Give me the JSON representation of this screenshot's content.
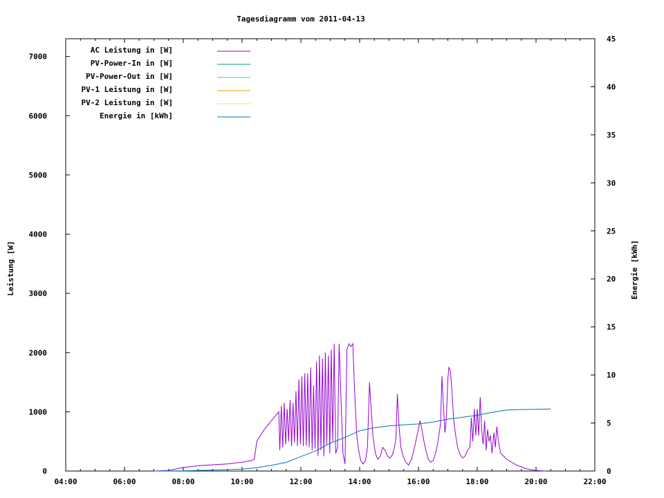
{
  "chart_data": {
    "type": "line",
    "title": "Tagesdiagramm vom 2011-04-13",
    "xlabel": "",
    "ylabel": "Leistung [W]",
    "y2label": "Energie [kWh]",
    "x_ticks": [
      "04:00",
      "06:00",
      "08:00",
      "10:00",
      "12:00",
      "14:00",
      "16:00",
      "18:00",
      "20:00",
      "22:00"
    ],
    "y_ticks": [
      "0",
      "1000",
      "2000",
      "3000",
      "4000",
      "5000",
      "6000",
      "7000"
    ],
    "y2_ticks": [
      "0",
      "5",
      "10",
      "15",
      "20",
      "25",
      "30",
      "35",
      "40",
      "45"
    ],
    "xlim": [
      "04:00",
      "22:00"
    ],
    "ylim": [
      0,
      7300
    ],
    "y2lim": [
      0,
      45
    ],
    "grid": false,
    "legend_position": "top-left",
    "legend": [
      {
        "label": "AC Leistung in [W]",
        "color": "#9400d3"
      },
      {
        "label": "PV-Power-In in [W]",
        "color": "#009e73"
      },
      {
        "label": "PV-Power-Out in [W]",
        "color": "#56b4e9"
      },
      {
        "label": "PV-1 Leistung in [W]",
        "color": "#e69f00"
      },
      {
        "label": "PV-2 Leistung in [W]",
        "color": "#f0e442"
      },
      {
        "label": "Energie in [kWh]",
        "color": "#0072b2"
      }
    ],
    "series": [
      {
        "name": "AC Leistung in [W]",
        "axis": "y1",
        "color": "#9400d3",
        "points": [
          [
            "07:00",
            0
          ],
          [
            "07:30",
            10
          ],
          [
            "08:00",
            60
          ],
          [
            "08:20",
            80
          ],
          [
            "08:40",
            95
          ],
          [
            "09:00",
            105
          ],
          [
            "09:30",
            120
          ],
          [
            "10:00",
            150
          ],
          [
            "10:20",
            180
          ],
          [
            "10:25",
            200
          ],
          [
            "10:30",
            500
          ],
          [
            "10:45",
            700
          ],
          [
            "11:00",
            850
          ],
          [
            "11:10",
            950
          ],
          [
            "11:15",
            1000
          ],
          [
            "11:17",
            350
          ],
          [
            "11:20",
            1100
          ],
          [
            "11:23",
            400
          ],
          [
            "11:26",
            1150
          ],
          [
            "11:29",
            450
          ],
          [
            "11:32",
            1050
          ],
          [
            "11:35",
            500
          ],
          [
            "11:38",
            1200
          ],
          [
            "11:41",
            420
          ],
          [
            "11:44",
            1150
          ],
          [
            "11:47",
            480
          ],
          [
            "11:50",
            1350
          ],
          [
            "11:53",
            420
          ],
          [
            "11:56",
            1550
          ],
          [
            "11:59",
            450
          ],
          [
            "12:02",
            1600
          ],
          [
            "12:05",
            420
          ],
          [
            "12:08",
            1650
          ],
          [
            "12:11",
            430
          ],
          [
            "12:14",
            1650
          ],
          [
            "12:17",
            400
          ],
          [
            "12:20",
            1750
          ],
          [
            "12:23",
            350
          ],
          [
            "12:26",
            1450
          ],
          [
            "12:29",
            380
          ],
          [
            "12:32",
            1850
          ],
          [
            "12:35",
            250
          ],
          [
            "12:38",
            1950
          ],
          [
            "12:41",
            350
          ],
          [
            "12:44",
            1900
          ],
          [
            "12:47",
            250
          ],
          [
            "12:50",
            2000
          ],
          [
            "12:53",
            450
          ],
          [
            "12:56",
            1950
          ],
          [
            "12:59",
            300
          ],
          [
            "13:02",
            2050
          ],
          [
            "13:05",
            500
          ],
          [
            "13:08",
            2150
          ],
          [
            "13:11",
            300
          ],
          [
            "13:15",
            400
          ],
          [
            "13:18",
            2150
          ],
          [
            "13:22",
            1200
          ],
          [
            "13:26",
            300
          ],
          [
            "13:30",
            120
          ],
          [
            "13:34",
            2050
          ],
          [
            "13:38",
            2150
          ],
          [
            "13:42",
            2100
          ],
          [
            "13:46",
            2150
          ],
          [
            "13:50",
            1300
          ],
          [
            "13:54",
            600
          ],
          [
            "13:58",
            350
          ],
          [
            "14:02",
            180
          ],
          [
            "14:07",
            120
          ],
          [
            "14:12",
            180
          ],
          [
            "14:16",
            400
          ],
          [
            "14:20",
            1500
          ],
          [
            "14:23",
            1100
          ],
          [
            "14:27",
            600
          ],
          [
            "14:32",
            300
          ],
          [
            "14:37",
            200
          ],
          [
            "14:42",
            250
          ],
          [
            "14:47",
            400
          ],
          [
            "14:52",
            350
          ],
          [
            "14:57",
            250
          ],
          [
            "15:02",
            220
          ],
          [
            "15:07",
            280
          ],
          [
            "15:11",
            400
          ],
          [
            "15:14",
            550
          ],
          [
            "15:17",
            1300
          ],
          [
            "15:20",
            800
          ],
          [
            "15:24",
            400
          ],
          [
            "15:29",
            250
          ],
          [
            "15:34",
            150
          ],
          [
            "15:40",
            100
          ],
          [
            "15:46",
            200
          ],
          [
            "15:52",
            400
          ],
          [
            "15:57",
            600
          ],
          [
            "16:00",
            700
          ],
          [
            "16:03",
            850
          ],
          [
            "16:06",
            750
          ],
          [
            "16:10",
            550
          ],
          [
            "16:15",
            350
          ],
          [
            "16:20",
            200
          ],
          [
            "16:25",
            150
          ],
          [
            "16:30",
            180
          ],
          [
            "16:35",
            300
          ],
          [
            "16:40",
            500
          ],
          [
            "16:45",
            800
          ],
          [
            "16:48",
            1600
          ],
          [
            "16:51",
            1100
          ],
          [
            "16:54",
            650
          ],
          [
            "16:57",
            900
          ],
          [
            "17:00",
            1550
          ],
          [
            "17:02",
            1750
          ],
          [
            "17:05",
            1700
          ],
          [
            "17:08",
            1400
          ],
          [
            "17:12",
            850
          ],
          [
            "17:16",
            600
          ],
          [
            "17:20",
            400
          ],
          [
            "17:25",
            280
          ],
          [
            "17:30",
            220
          ],
          [
            "17:35",
            250
          ],
          [
            "17:40",
            350
          ],
          [
            "17:45",
            400
          ],
          [
            "17:48",
            900
          ],
          [
            "17:51",
            500
          ],
          [
            "17:54",
            1050
          ],
          [
            "17:57",
            600
          ],
          [
            "18:00",
            1050
          ],
          [
            "18:03",
            600
          ],
          [
            "18:06",
            1250
          ],
          [
            "18:09",
            700
          ],
          [
            "18:12",
            450
          ],
          [
            "18:15",
            850
          ],
          [
            "18:18",
            350
          ],
          [
            "18:21",
            700
          ],
          [
            "18:24",
            500
          ],
          [
            "18:27",
            600
          ],
          [
            "18:30",
            300
          ],
          [
            "18:34",
            650
          ],
          [
            "18:37",
            400
          ],
          [
            "18:40",
            750
          ],
          [
            "18:44",
            450
          ],
          [
            "18:48",
            300
          ],
          [
            "18:54",
            250
          ],
          [
            "19:00",
            200
          ],
          [
            "19:10",
            150
          ],
          [
            "19:20",
            100
          ],
          [
            "19:30",
            70
          ],
          [
            "19:40",
            40
          ],
          [
            "19:50",
            20
          ],
          [
            "20:00",
            10
          ],
          [
            "20:10",
            5
          ],
          [
            "20:20",
            0
          ]
        ]
      },
      {
        "name": "Energie in [kWh]",
        "axis": "y2",
        "color": "#0072b2",
        "points": [
          [
            "07:00",
            0
          ],
          [
            "08:00",
            0.02
          ],
          [
            "09:00",
            0.1
          ],
          [
            "10:00",
            0.2
          ],
          [
            "10:30",
            0.35
          ],
          [
            "11:00",
            0.6
          ],
          [
            "11:30",
            0.9
          ],
          [
            "12:00",
            1.5
          ],
          [
            "12:30",
            2.1
          ],
          [
            "13:00",
            2.9
          ],
          [
            "13:30",
            3.5
          ],
          [
            "14:00",
            4.2
          ],
          [
            "14:30",
            4.5
          ],
          [
            "15:00",
            4.7
          ],
          [
            "15:30",
            4.8
          ],
          [
            "16:00",
            4.9
          ],
          [
            "16:30",
            5.1
          ],
          [
            "17:00",
            5.4
          ],
          [
            "17:30",
            5.6
          ],
          [
            "18:00",
            5.8
          ],
          [
            "18:30",
            6.1
          ],
          [
            "19:00",
            6.35
          ],
          [
            "19:30",
            6.4
          ],
          [
            "20:00",
            6.42
          ],
          [
            "20:30",
            6.45
          ]
        ]
      }
    ]
  }
}
